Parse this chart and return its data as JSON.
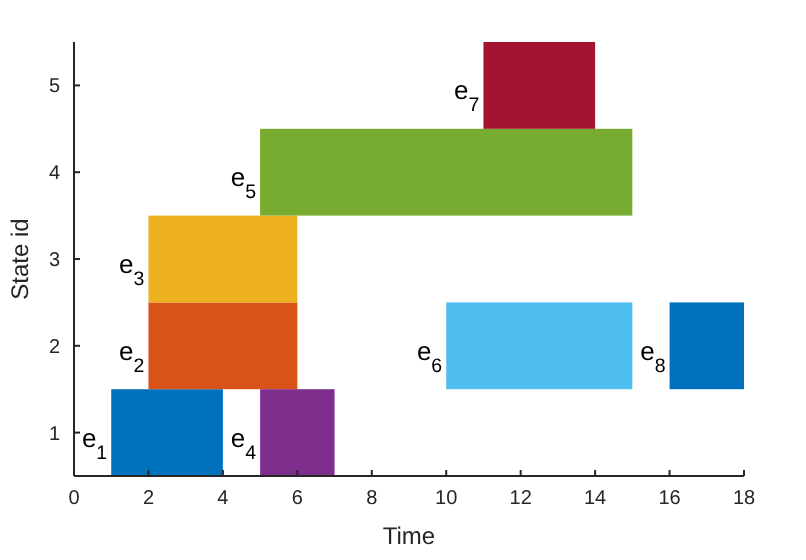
{
  "chart_data": {
    "type": "bar",
    "orientation": "horizontal",
    "xlabel": "Time",
    "ylabel": "State id",
    "categories": [
      "5",
      "4",
      "3",
      "2",
      "1"
    ],
    "xlim": [
      0,
      18
    ],
    "xticks": [
      0,
      2,
      4,
      6,
      8,
      10,
      12,
      14,
      16,
      18
    ],
    "grid": false,
    "series": [
      {
        "name": "e$_{1}$",
        "color": "#0072bd",
        "values": [
          null,
          null,
          null,
          null,
          3
        ],
        "base": [
          null,
          null,
          null,
          null,
          1
        ]
      },
      {
        "name": "e$_{2}$",
        "color": "#d95319",
        "values": [
          null,
          null,
          null,
          4,
          null
        ],
        "base": [
          null,
          null,
          null,
          2,
          null
        ]
      },
      {
        "name": "e$_{3}$",
        "color": "#edb120",
        "values": [
          null,
          null,
          4,
          null,
          null
        ],
        "base": [
          null,
          null,
          2,
          null,
          null
        ]
      },
      {
        "name": "e$_{4}$",
        "color": "#7e2f8e",
        "values": [
          null,
          null,
          null,
          null,
          2
        ],
        "base": [
          null,
          null,
          null,
          null,
          5
        ]
      },
      {
        "name": "e$_{5}$",
        "color": "#77ac30",
        "values": [
          null,
          10,
          null,
          null,
          null
        ],
        "base": [
          null,
          5,
          null,
          null,
          null
        ]
      },
      {
        "name": "e$_{6}$",
        "color": "#4dbeee",
        "values": [
          null,
          null,
          null,
          5,
          null
        ],
        "base": [
          null,
          null,
          null,
          10,
          null
        ]
      },
      {
        "name": "e$_{7}$",
        "color": "#a2142f",
        "values": [
          3,
          null,
          null,
          null,
          null
        ],
        "base": [
          11,
          null,
          null,
          null,
          null
        ]
      },
      {
        "name": "e$_{8}$",
        "color": "#0072bd",
        "values": [
          null,
          null,
          null,
          2,
          null
        ],
        "base": [
          null,
          null,
          null,
          16,
          null
        ]
      }
    ]
  }
}
